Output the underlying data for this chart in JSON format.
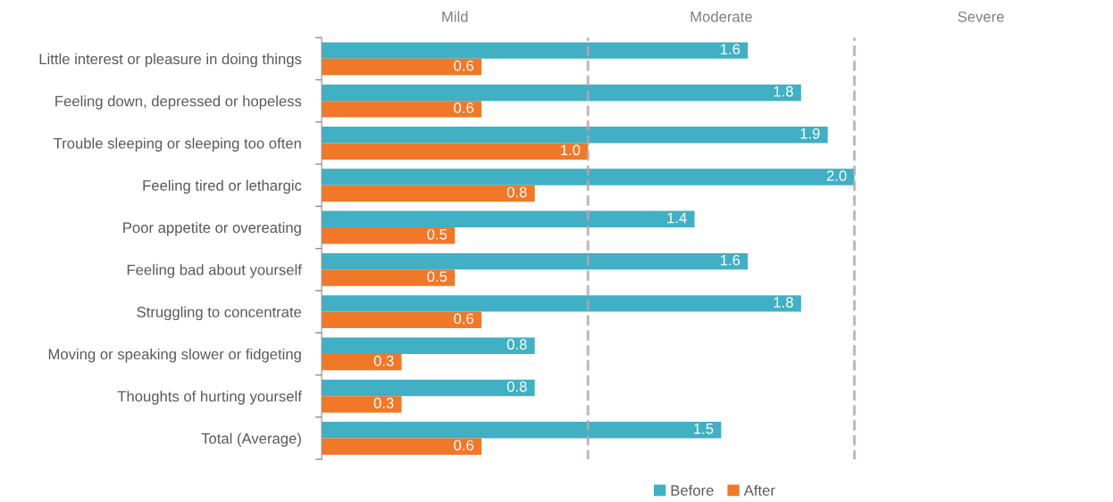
{
  "chart_data": {
    "type": "bar",
    "orientation": "horizontal",
    "categories": [
      "Little interest or pleasure in doing things",
      "Feeling down, depressed or hopeless",
      "Trouble sleeping or sleeping too often",
      "Feeling tired or lethargic",
      "Poor appetite or overeating",
      "Feeling bad about yourself",
      "Struggling to concentrate",
      "Moving or speaking slower or fidgeting",
      "Thoughts of hurting yourself",
      "Total (Average)"
    ],
    "series": [
      {
        "name": "Before",
        "color": "#41afc4",
        "values": [
          1.6,
          1.8,
          1.9,
          2.0,
          1.4,
          1.6,
          1.8,
          0.8,
          0.8,
          1.5
        ],
        "value_labels": [
          "1.6",
          "1.8",
          "1.9",
          "2.0",
          "1.4",
          "1.6",
          "1.8",
          "0.8",
          "0.8",
          "1.5"
        ]
      },
      {
        "name": "After",
        "color": "#f07828",
        "values": [
          0.6,
          0.6,
          1.0,
          0.8,
          0.5,
          0.5,
          0.6,
          0.3,
          0.3,
          0.6
        ],
        "value_labels": [
          "0.6",
          "0.6",
          "1.0",
          "0.8",
          "0.5",
          "0.5",
          "0.6",
          "0.3",
          "0.3",
          "0.6"
        ]
      }
    ],
    "tick_labels": "y",
    "legend": "bottom",
    "grid": false,
    "ref_lines": [
      {
        "axis": "x",
        "value": 1,
        "color": "#bba3ad",
        "line_style": "dashed"
      },
      {
        "axis": "x",
        "value": 2,
        "color": "#bba3ad",
        "line_style": "dashed"
      }
    ],
    "annotations": [
      "Mild",
      "Moderate",
      "Severe"
    ]
  }
}
